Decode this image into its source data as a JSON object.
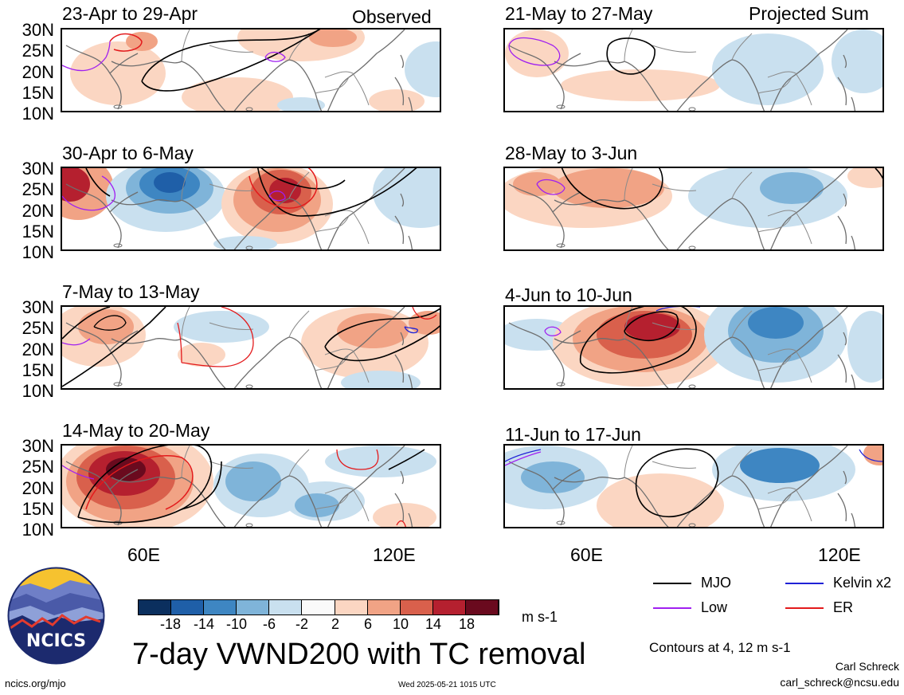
{
  "headers": {
    "left": "Observed",
    "right": "Projected Sum"
  },
  "panels": {
    "left": [
      "23-Apr to 29-Apr",
      "30-Apr to 6-May",
      "7-May to 13-May",
      "14-May to 20-May"
    ],
    "right": [
      "21-May to 27-May",
      "28-May to 3-Jun",
      "4-Jun to 10-Jun",
      "11-Jun to 17-Jun"
    ]
  },
  "latitude_ticks": [
    "30N",
    "25N",
    "20N",
    "15N",
    "10N"
  ],
  "longitude_ticks": [
    "60E",
    "120E"
  ],
  "colorbar": {
    "labels": [
      "-18",
      "-14",
      "-10",
      "-6",
      "-2",
      "2",
      "6",
      "10",
      "14",
      "18"
    ],
    "unit": "m s-1",
    "colors": [
      "#0b2f5e",
      "#1f5fa8",
      "#3e86c2",
      "#7fb4d9",
      "#c9e0ef",
      "#fafafa",
      "#fbd6c2",
      "#f1a385",
      "#d9604c",
      "#b5202f",
      "#6a0a1e"
    ]
  },
  "legend": [
    {
      "label": "MJO",
      "color": "#000000"
    },
    {
      "label": "Kelvin x2",
      "color": "#1f22d6"
    },
    {
      "label": "Low",
      "color": "#a020f0"
    },
    {
      "label": "ER",
      "color": "#e31a1c"
    }
  ],
  "title": "7-day VWND200 with TC removal",
  "contours_note": "Contours at 4, 12 m s-1",
  "logo_text": "NCICS",
  "footer": {
    "left": "ncics.org/mjo",
    "center": "Wed 2025-05-21 1015 UTC",
    "author": "Carl Schreck",
    "email": "carl_schreck@ncsu.edu"
  }
}
